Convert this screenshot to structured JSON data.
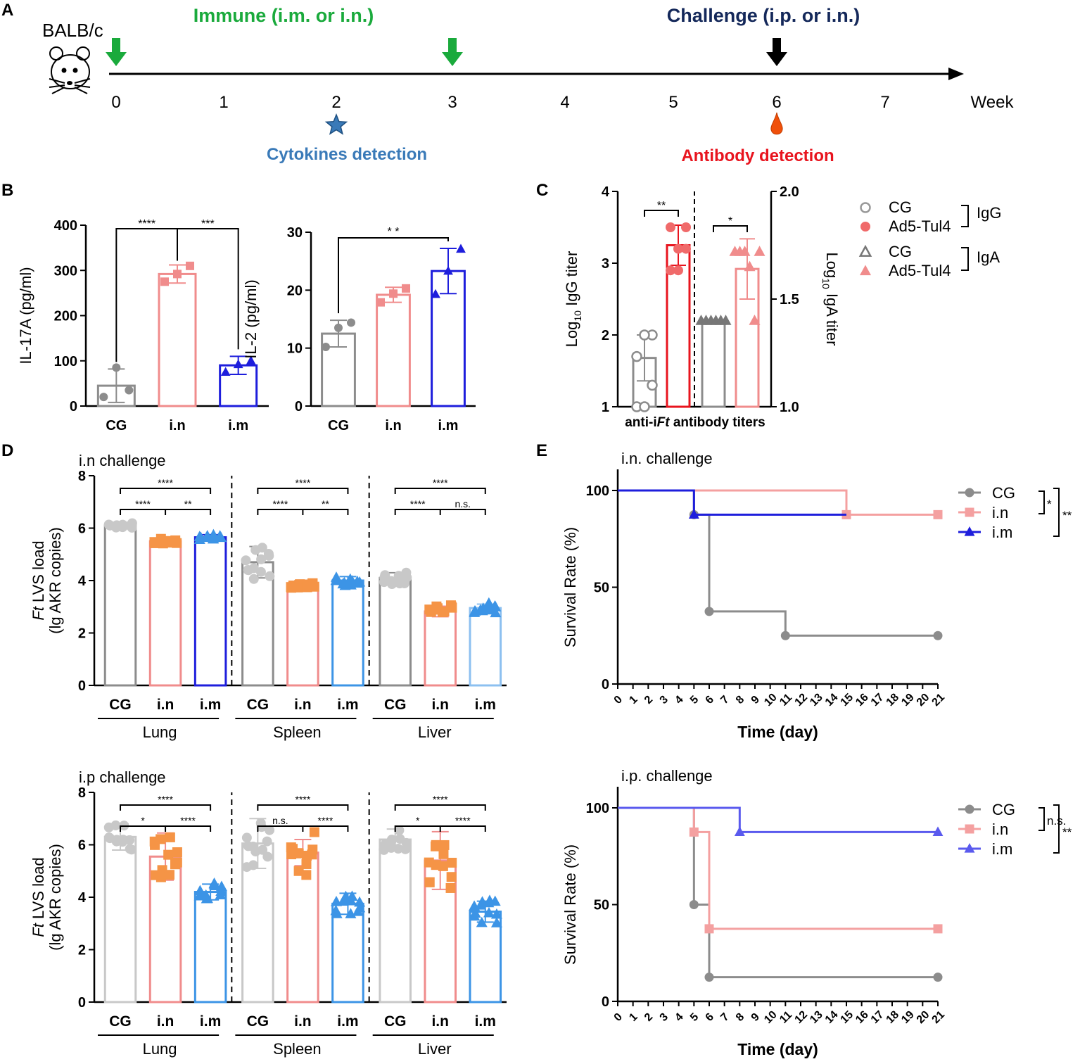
{
  "panel_letters": {
    "a": "A",
    "b": "B",
    "c": "C",
    "d": "D",
    "e": "E"
  },
  "colors": {
    "green": "#1aaa3c",
    "navy": "#14285a",
    "steel": "#3a7ab8",
    "red": "#e8141e",
    "grey": "#8c8c8c",
    "lightgrey": "#c8c8c8",
    "pink": "#f08c8c",
    "orange": "#f59446",
    "blue": "#1e1edc",
    "skyblue": "#3c94e6",
    "lightblue": "#8cc0f0",
    "black": "#000000"
  },
  "timeline": {
    "mouse_label": "BALB/c",
    "immune_label": "Immune (i.m. or i.n.)",
    "challenge_label": "Challenge (i.p. or i.n.)",
    "weeks": [
      "0",
      "1",
      "2",
      "3",
      "4",
      "5",
      "6",
      "7"
    ],
    "unit": "Week",
    "immune_weeks": [
      0,
      3
    ],
    "challenge_week": 6,
    "cytokine_week": 2,
    "antibody_week": 6,
    "cytokine_label": "Cytokines detection",
    "antibody_label": "Antibody detection"
  },
  "chart_data": [
    {
      "id": "B1",
      "type": "bar",
      "panel": "B",
      "ylabel": "IL-17A (pg/ml)",
      "ylim": [
        0,
        400
      ],
      "yticks": [
        0,
        100,
        200,
        300,
        400
      ],
      "categories": [
        "CG",
        "i.n",
        "i.m"
      ],
      "values": [
        45,
        292,
        90
      ],
      "errors": [
        37,
        20,
        20
      ],
      "points": [
        [
          20,
          85,
          35
        ],
        [
          275,
          292,
          310
        ],
        [
          75,
          92,
          100
        ]
      ],
      "markers": [
        "circle",
        "square",
        "triangle"
      ],
      "series_colors": [
        "#8c8c8c",
        "#f08c8c",
        "#1e1edc"
      ],
      "significance": [
        {
          "from": 0,
          "to": 2,
          "level": 0,
          "label": "****"
        },
        {
          "from": 1,
          "to": 2,
          "level": 0,
          "label": "***"
        }
      ]
    },
    {
      "id": "B2",
      "type": "bar",
      "panel": "B",
      "ylabel": "IL-2 (pg/ml)",
      "ylim": [
        0,
        30
      ],
      "yticks": [
        0,
        10,
        20,
        30
      ],
      "categories": [
        "CG",
        "i.n",
        "i.m"
      ],
      "values": [
        12.5,
        19.2,
        23.3
      ],
      "errors": [
        2.3,
        1.3,
        3.9
      ],
      "points": [
        [
          10.2,
          13.5,
          14.4
        ],
        [
          17.9,
          19.4,
          20.3
        ],
        [
          19.3,
          23.3,
          27.1
        ]
      ],
      "markers": [
        "circle",
        "square",
        "triangle"
      ],
      "series_colors": [
        "#8c8c8c",
        "#f08c8c",
        "#1e1edc"
      ],
      "significance": [
        {
          "from": 0,
          "to": 2,
          "level": 0,
          "label": "* *"
        }
      ]
    },
    {
      "id": "C",
      "type": "bar",
      "panel": "C",
      "ylabel_left_main": "Log",
      "ylabel_left_sub": "10",
      "ylabel_left_rest": " IgG titer",
      "ylabel_right_main": "Log",
      "ylabel_right_sub": "10",
      "ylabel_right_rest": " IgA titer",
      "xlabel": "anti-iFt antibody titers",
      "ylim_left": [
        1,
        4
      ],
      "yticks_left": [
        "1",
        "2",
        "3",
        "4"
      ],
      "ylim_right": [
        1.0,
        2.0
      ],
      "yticks_right": [
        "1.0",
        "1.5",
        "2.0"
      ],
      "bars": [
        {
          "name": "CG IgG",
          "axis": "left",
          "value": 1.68,
          "error": 0.32,
          "color": "#8c8c8c",
          "marker": "open-circle",
          "points": [
            1.0,
            1.3,
            1.7,
            2.0,
            2.0,
            1.0
          ]
        },
        {
          "name": "Ad5-Tul4 IgG",
          "axis": "left",
          "value": 3.25,
          "error": 0.28,
          "color": "#e8141e",
          "marker": "circle",
          "points": [
            2.9,
            3.2,
            3.5,
            3.5,
            3.2,
            2.9
          ]
        },
        {
          "name": "CG IgA",
          "axis": "right",
          "value": 1.4,
          "error": 0.0,
          "color": "#8c8c8c",
          "marker": "triangle",
          "points": [
            1.4,
            1.4,
            1.4,
            1.4,
            1.4,
            1.4
          ]
        },
        {
          "name": "Ad5-Tul4 IgA",
          "axis": "right",
          "value": 1.64,
          "error": 0.14,
          "color": "#f08c8c",
          "marker": "triangle",
          "points": [
            1.72,
            1.72,
            1.72,
            1.65,
            1.4,
            1.72
          ]
        }
      ],
      "significance": [
        {
          "from": 0,
          "to": 1,
          "label": "**"
        },
        {
          "from": 2,
          "to": 3,
          "label": "*"
        }
      ],
      "legend": {
        "cg": "CG",
        "ad5": "Ad5-Tul4",
        "cg2": "CG",
        "ad52": "Ad5-Tul4",
        "igg": "IgG",
        "iga": "IgA"
      }
    },
    {
      "id": "D1",
      "type": "bar",
      "panel": "D",
      "title": "i.n challenge",
      "ylabel_italic": "Ft",
      "ylabel_rest": " LVS load",
      "ylabel2": "(lg AKR copies)",
      "ylim": [
        0,
        8
      ],
      "yticks": [
        0,
        2,
        4,
        6,
        8
      ],
      "groups": [
        {
          "name": "Lung",
          "categories": [
            "CG",
            "i.n",
            "i.m"
          ],
          "values": [
            6.1,
            5.5,
            5.65
          ],
          "errors": [
            0.1,
            0.1,
            0.1
          ],
          "colors": [
            "#8c8c8c",
            "#f08c8c",
            "#1e1edc"
          ],
          "marker_colors": [
            "#c8c8c8",
            "#f59446",
            "#3c94e6"
          ],
          "markers": [
            "circle",
            "square",
            "triangle"
          ],
          "spread": [
            0.1,
            0.1,
            0.1
          ],
          "significance": [
            {
              "from": 0,
              "to": 2,
              "level": 1,
              "label": "****"
            },
            {
              "from": 0,
              "to": 1,
              "level": 0,
              "label": "****"
            },
            {
              "from": 1,
              "to": 2,
              "level": 0,
              "label": "**"
            }
          ]
        },
        {
          "name": "Spleen",
          "categories": [
            "CG",
            "i.n",
            "i.m"
          ],
          "values": [
            4.7,
            3.82,
            4.0
          ],
          "errors": [
            0.6,
            0.08,
            0.15
          ],
          "colors": [
            "#8c8c8c",
            "#f08c8c",
            "#3c94e6"
          ],
          "marker_colors": [
            "#c8c8c8",
            "#f59446",
            "#3c94e6"
          ],
          "markers": [
            "circle",
            "square",
            "triangle"
          ],
          "spread": [
            0.65,
            0.1,
            0.2
          ],
          "significance": [
            {
              "from": 0,
              "to": 2,
              "level": 1,
              "label": "****"
            },
            {
              "from": 0,
              "to": 1,
              "level": 0,
              "label": "****"
            },
            {
              "from": 1,
              "to": 2,
              "level": 0,
              "label": "**"
            }
          ]
        },
        {
          "name": "Liver",
          "categories": [
            "CG",
            "i.n",
            "i.m"
          ],
          "values": [
            4.1,
            2.82,
            2.95
          ],
          "errors": [
            0.2,
            0.2,
            0.15
          ],
          "colors": [
            "#8c8c8c",
            "#f08c8c",
            "#8cc0f0"
          ],
          "marker_colors": [
            "#c8c8c8",
            "#f59446",
            "#3c94e6"
          ],
          "markers": [
            "circle",
            "square",
            "triangle"
          ],
          "spread": [
            0.25,
            0.25,
            0.2
          ],
          "significance": [
            {
              "from": 0,
              "to": 2,
              "level": 1,
              "label": "****"
            },
            {
              "from": 0,
              "to": 1,
              "level": 0,
              "label": "****"
            },
            {
              "from": 1,
              "to": 2,
              "level": 0,
              "label": "n.s."
            }
          ]
        }
      ]
    },
    {
      "id": "D2",
      "type": "bar",
      "panel": "D",
      "title": "i.p challenge",
      "ylabel_italic": "Ft",
      "ylabel_rest": " LVS load",
      "ylabel2": "(lg AKR copies)",
      "ylim": [
        0,
        8
      ],
      "yticks": [
        0,
        2,
        4,
        6,
        8
      ],
      "groups": [
        {
          "name": "Lung",
          "categories": [
            "CG",
            "i.n",
            "i.m"
          ],
          "values": [
            6.3,
            5.55,
            4.2
          ],
          "errors": [
            0.5,
            0.9,
            0.3
          ],
          "colors": [
            "#c8c8c8",
            "#f08c8c",
            "#3c94e6"
          ],
          "marker_colors": [
            "#c8c8c8",
            "#f59446",
            "#3c94e6"
          ],
          "markers": [
            "circle",
            "square",
            "triangle"
          ],
          "spread": [
            0.55,
            0.95,
            0.35
          ],
          "significance": [
            {
              "from": 0,
              "to": 2,
              "level": 1,
              "label": "****"
            },
            {
              "from": 0,
              "to": 1,
              "level": 0,
              "label": "*"
            },
            {
              "from": 1,
              "to": 2,
              "level": 0,
              "label": "****"
            }
          ]
        },
        {
          "name": "Spleen",
          "categories": [
            "CG",
            "i.n",
            "i.m"
          ],
          "values": [
            6.05,
            5.7,
            3.75
          ],
          "errors": [
            0.95,
            0.5,
            0.4
          ],
          "colors": [
            "#c8c8c8",
            "#f08c8c",
            "#3c94e6"
          ],
          "marker_colors": [
            "#c8c8c8",
            "#f59446",
            "#3c94e6"
          ],
          "markers": [
            "circle",
            "square",
            "triangle"
          ],
          "spread": [
            1.0,
            0.85,
            0.4
          ],
          "significance": [
            {
              "from": 0,
              "to": 2,
              "level": 1,
              "label": "****"
            },
            {
              "from": 0,
              "to": 1,
              "level": 0,
              "label": "n.s."
            },
            {
              "from": 1,
              "to": 2,
              "level": 0,
              "label": "****"
            }
          ]
        },
        {
          "name": "Liver",
          "categories": [
            "CG",
            "i.n",
            "i.m"
          ],
          "values": [
            6.2,
            5.4,
            3.45
          ],
          "errors": [
            0.4,
            1.1,
            0.4
          ],
          "colors": [
            "#c8c8c8",
            "#f08c8c",
            "#3c94e6"
          ],
          "marker_colors": [
            "#c8c8c8",
            "#f59446",
            "#3c94e6"
          ],
          "markers": [
            "circle",
            "square",
            "triangle"
          ],
          "spread": [
            0.45,
            1.05,
            0.45
          ],
          "significance": [
            {
              "from": 0,
              "to": 2,
              "level": 1,
              "label": "****"
            },
            {
              "from": 0,
              "to": 1,
              "level": 0,
              "label": "*"
            },
            {
              "from": 1,
              "to": 2,
              "level": 0,
              "label": "****"
            }
          ]
        }
      ]
    },
    {
      "id": "E1",
      "type": "line",
      "panel": "E",
      "step": true,
      "title": "i.n. challenge",
      "xlabel": "Time (day)",
      "ylabel": "Survival Rate (%)",
      "xlim": [
        0,
        21
      ],
      "ylim": [
        0,
        100
      ],
      "yticks": [
        0,
        50,
        100
      ],
      "xticks": [
        "0",
        "1",
        "2",
        "3",
        "4",
        "5",
        "6",
        "7",
        "8",
        "9",
        "10",
        "11",
        "12",
        "13",
        "14",
        "15",
        "16",
        "17",
        "18",
        "19",
        "20",
        "21"
      ],
      "series": [
        {
          "name": "CG",
          "color": "#8c8c8c",
          "marker": "circle",
          "x": [
            0,
            5,
            6,
            11,
            21
          ],
          "y": [
            100,
            87.5,
            37.5,
            25,
            25
          ],
          "marker_x": [
            5,
            6,
            11,
            21
          ]
        },
        {
          "name": "i.n",
          "color": "#f4a0a0",
          "marker": "square",
          "x": [
            0,
            15,
            21
          ],
          "y": [
            100,
            87.5,
            87.5
          ],
          "marker_x": [
            15,
            21
          ]
        },
        {
          "name": "i.m",
          "color": "#1e1edc",
          "marker": "triangle",
          "x": [
            0,
            5,
            15
          ],
          "y": [
            100,
            87.5,
            87.5
          ],
          "marker_x": [
            5
          ]
        }
      ],
      "significance": [
        {
          "label": "*"
        },
        {
          "label": "**"
        }
      ]
    },
    {
      "id": "E2",
      "type": "line",
      "panel": "E",
      "step": true,
      "title": "i.p. challenge",
      "xlabel": "Time (day)",
      "ylabel": "Survival Rate (%)",
      "xlim": [
        0,
        21
      ],
      "ylim": [
        0,
        100
      ],
      "yticks": [
        0,
        50,
        100
      ],
      "xticks": [
        "0",
        "1",
        "2",
        "3",
        "4",
        "5",
        "6",
        "7",
        "8",
        "9",
        "10",
        "11",
        "12",
        "13",
        "14",
        "15",
        "16",
        "17",
        "18",
        "19",
        "20",
        "21"
      ],
      "series": [
        {
          "name": "CG",
          "color": "#8c8c8c",
          "marker": "circle",
          "x": [
            0,
            5,
            6,
            21
          ],
          "y": [
            100,
            50,
            12.5,
            12.5
          ],
          "marker_x": [
            5,
            6,
            21
          ]
        },
        {
          "name": "i.n",
          "color": "#f4a0a0",
          "marker": "square",
          "x": [
            0,
            5,
            6,
            21
          ],
          "y": [
            100,
            87.5,
            37.5,
            37.5
          ],
          "marker_x": [
            5,
            6,
            21
          ]
        },
        {
          "name": "i.m",
          "color": "#5a5aee",
          "marker": "triangle",
          "x": [
            0,
            8,
            21
          ],
          "y": [
            100,
            87.5,
            87.5
          ],
          "marker_x": [
            8,
            21
          ]
        }
      ],
      "significance": [
        {
          "label": "n.s."
        },
        {
          "label": "**"
        }
      ]
    }
  ]
}
